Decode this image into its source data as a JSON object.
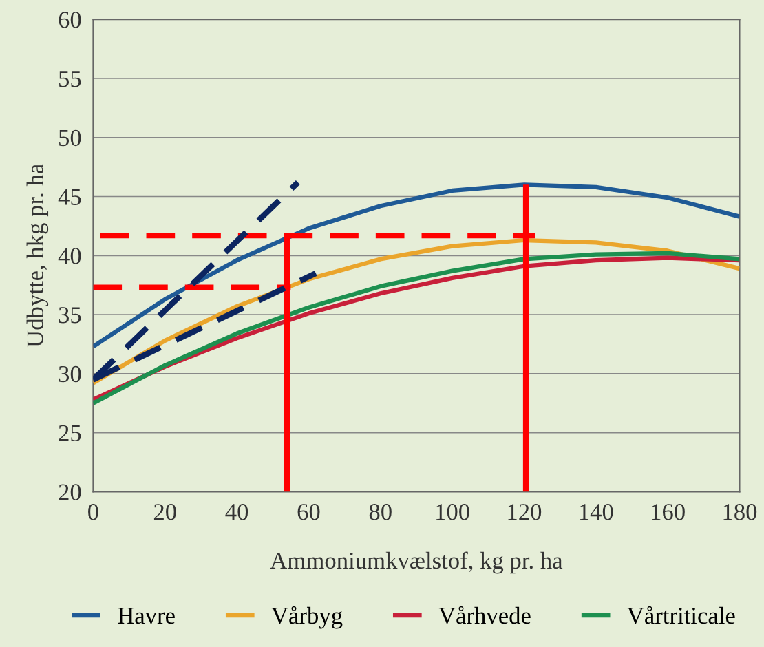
{
  "chart_data": {
    "type": "line",
    "xlabel": "Ammoniumkvælstof, kg pr. ha",
    "ylabel": "Udbytte, hkg pr. ha",
    "x": [
      0,
      20,
      40,
      60,
      80,
      100,
      120,
      140,
      160,
      180
    ],
    "series": [
      {
        "name": "Havre",
        "color": "#1f5a96",
        "values": [
          32.3,
          36.3,
          39.6,
          42.3,
          44.2,
          45.5,
          46.0,
          45.8,
          44.9,
          43.3
        ]
      },
      {
        "name": "Vårbyg",
        "color": "#eaa52c",
        "values": [
          29.2,
          32.8,
          35.7,
          38.0,
          39.7,
          40.8,
          41.3,
          41.1,
          40.4,
          38.9
        ]
      },
      {
        "name": "Vårhvede",
        "color": "#c8203a",
        "values": [
          27.8,
          30.6,
          33.0,
          35.1,
          36.8,
          38.1,
          39.1,
          39.6,
          39.8,
          39.6
        ]
      },
      {
        "name": "Vårtriticale",
        "color": "#1d9050",
        "values": [
          27.5,
          30.7,
          33.4,
          35.6,
          37.4,
          38.7,
          39.7,
          40.1,
          40.2,
          39.7
        ]
      },
      {
        "type": "line",
        "color": "#ff0000",
        "line_style": "dashed",
        "x": [
          2,
          123
        ],
        "values": [
          41.7,
          41.7
        ]
      },
      {
        "type": "line",
        "color": "#ff0000",
        "line_style": "dashed",
        "x": [
          0,
          55
        ],
        "values": [
          37.3,
          37.3
        ]
      },
      {
        "type": "line",
        "color": "#ff0000",
        "x": [
          54,
          54
        ],
        "values": [
          20,
          41.7
        ]
      },
      {
        "type": "line",
        "color": "#ff0000",
        "x": [
          120.5,
          120.5
        ],
        "values": [
          20,
          46
        ]
      },
      {
        "type": "line",
        "color": "#0c2560",
        "line_style": "dashed",
        "x": [
          0,
          57
        ],
        "values": [
          29.5,
          46.2
        ]
      },
      {
        "type": "line",
        "color": "#0c2560",
        "line_style": "dashed",
        "x": [
          0,
          62
        ],
        "values": [
          29.5,
          38.5
        ]
      }
    ],
    "xlim": [
      0,
      180
    ],
    "xticks": [
      0,
      20,
      40,
      60,
      80,
      100,
      120,
      140,
      160,
      180
    ],
    "ylim": [
      20,
      60
    ],
    "yticks": [
      20,
      25,
      30,
      35,
      40,
      45,
      50,
      55,
      60
    ],
    "grid": "y",
    "legend": "bottom",
    "line_style": "solid",
    "marker": "none"
  }
}
